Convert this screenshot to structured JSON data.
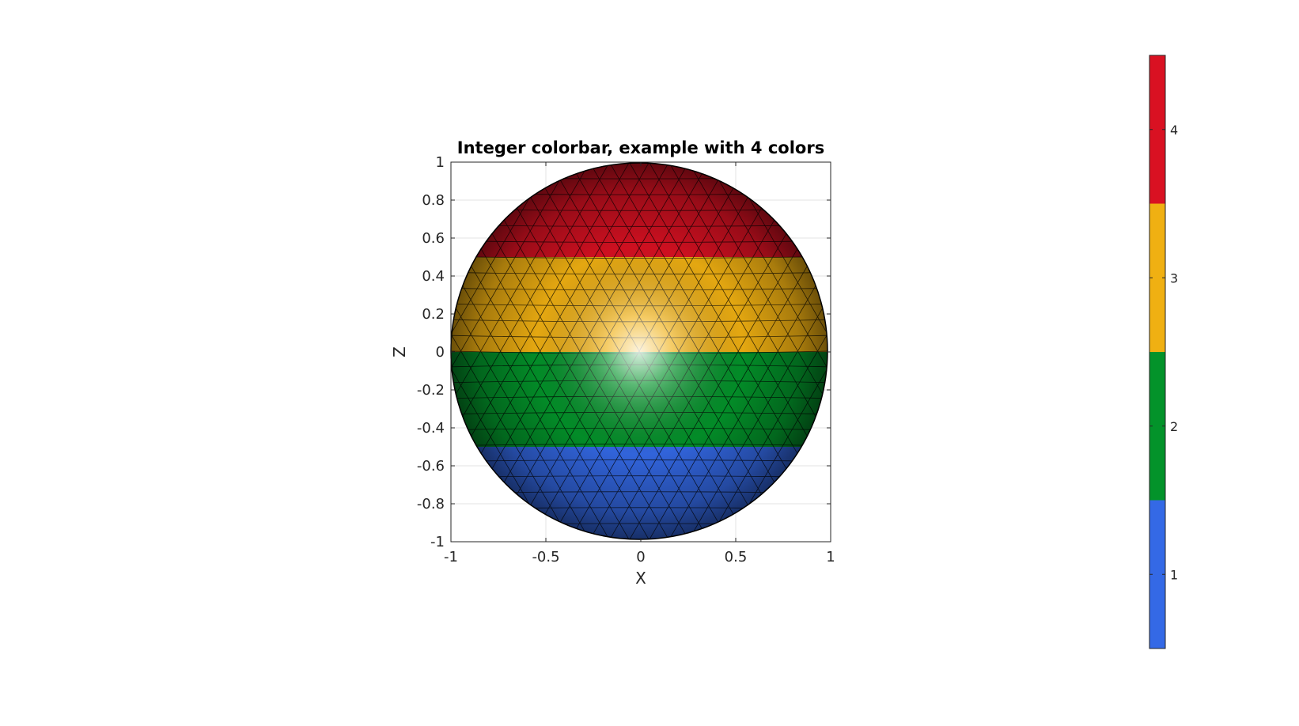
{
  "chart_data": {
    "type": "surface",
    "title": "Integer colorbar, example with 4 colors",
    "xlabel": "X",
    "ylabel": "Z",
    "view": "front, looking along -Y",
    "surface": "unit sphere, triangulated mesh with black edges",
    "xlim": [
      -1,
      1
    ],
    "ylim": [
      -1,
      1
    ],
    "grid": true,
    "xticks": [
      "-1",
      "-0.5",
      "0",
      "0.5",
      "1"
    ],
    "yticks": [
      "1",
      "0.8",
      "0.6",
      "0.4",
      "0.2",
      "0",
      "-0.2",
      "-0.4",
      "-0.6",
      "-0.8",
      "-1"
    ],
    "bands": [
      {
        "value": 4,
        "z_range": [
          0.5,
          1.0
        ]
      },
      {
        "value": 3,
        "z_range": [
          0.0,
          0.5
        ]
      },
      {
        "value": 2,
        "z_range": [
          -0.5,
          0.0
        ]
      },
      {
        "value": 1,
        "z_range": [
          -1.0,
          -0.5
        ]
      }
    ],
    "colorbar": {
      "location": "right",
      "clim": [
        0.5,
        4.5
      ],
      "ticks": [
        "1",
        "2",
        "3",
        "4"
      ],
      "colors": [
        "#3469e6",
        "#03932a",
        "#f0b012",
        "#d91122"
      ]
    }
  }
}
